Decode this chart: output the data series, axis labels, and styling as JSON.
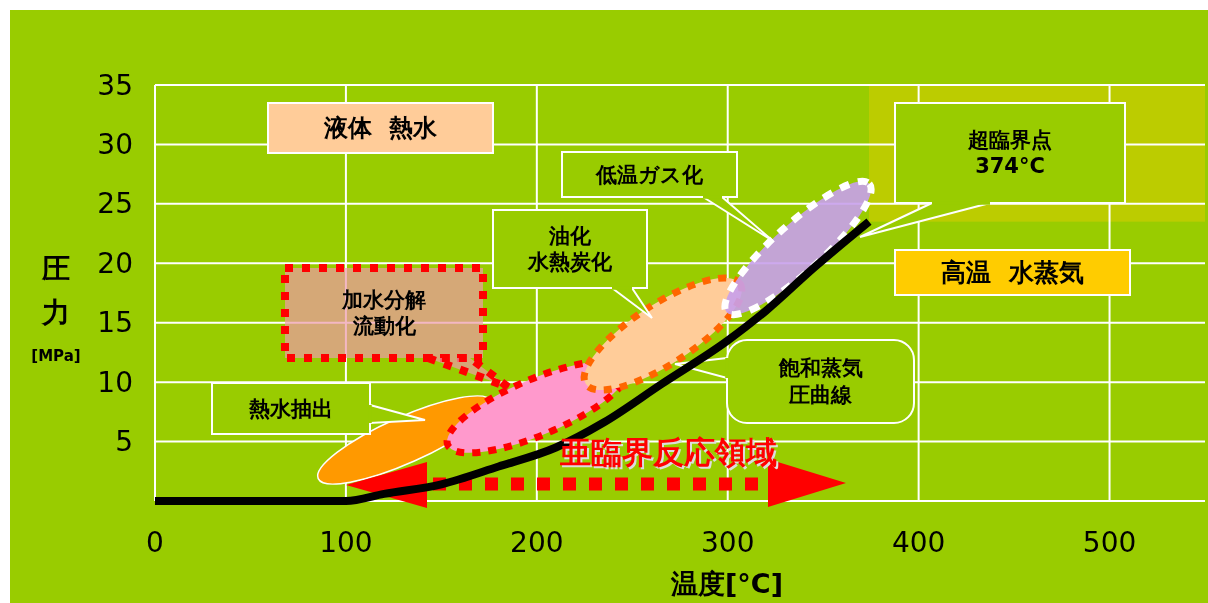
{
  "chart_data": {
    "type": "line",
    "xlabel": "温度[°C]",
    "ylabel": "圧力[MPa]",
    "xlim": [
      0,
      550
    ],
    "ylim": [
      0,
      35
    ],
    "xticks": [
      0,
      100,
      200,
      300,
      400,
      500
    ],
    "yticks": [
      5,
      10,
      15,
      20,
      25,
      30,
      35
    ],
    "grid": true,
    "x": [
      0,
      50,
      100,
      120,
      150,
      180,
      210,
      235,
      265,
      300,
      320,
      345,
      374
    ],
    "series": [
      {
        "name": "飽和蒸気圧曲線",
        "color": "#000000",
        "values": [
          0,
          0,
          0,
          0.6,
          1.4,
          2.9,
          4.5,
          6.6,
          9.8,
          13.5,
          16,
          19.6,
          23.5
        ]
      }
    ],
    "bands": [
      {
        "axis": "x",
        "from": 374,
        "to": 550,
        "color": "#bccc00"
      }
    ],
    "annotations": [
      "液体  熱水",
      "低温ガス化",
      "超臨界点\n374°C",
      "油化水熱炭化",
      "加水分解流動化",
      "熱水抽出",
      "高温  水蒸気",
      "亜臨界反応領域"
    ]
  }
}
